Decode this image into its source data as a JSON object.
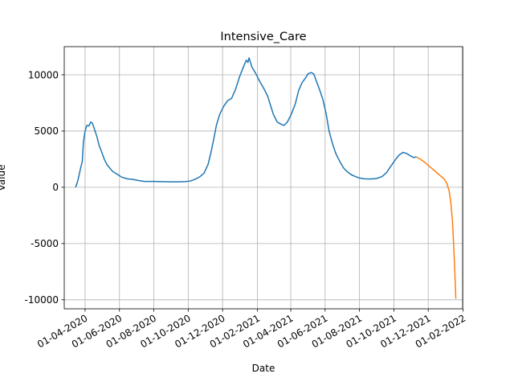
{
  "chart_data": {
    "type": "line",
    "title": "Intensive_Care",
    "xlabel": "Date",
    "ylabel": "Value",
    "grid": true,
    "x_axis": "date",
    "xlim": [
      "2020-02-24",
      "2022-01-31"
    ],
    "ylim": [
      -10800,
      12500
    ],
    "yticks": [
      -10000,
      -5000,
      0,
      5000,
      10000
    ],
    "xticks": [
      {
        "date": "2020-04-01",
        "label": "01-04-2020"
      },
      {
        "date": "2020-06-01",
        "label": "01-06-2020"
      },
      {
        "date": "2020-08-01",
        "label": "01-08-2020"
      },
      {
        "date": "2020-10-01",
        "label": "01-10-2020"
      },
      {
        "date": "2020-12-01",
        "label": "01-12-2020"
      },
      {
        "date": "2021-02-01",
        "label": "01-02-2021"
      },
      {
        "date": "2021-04-01",
        "label": "01-04-2021"
      },
      {
        "date": "2021-06-01",
        "label": "01-06-2021"
      },
      {
        "date": "2021-08-01",
        "label": "01-08-2021"
      },
      {
        "date": "2021-10-01",
        "label": "01-10-2021"
      },
      {
        "date": "2021-12-01",
        "label": "01-12-2021"
      },
      {
        "date": "2022-02-01",
        "label": "01-02-2022"
      }
    ],
    "series": [
      {
        "color": "#1f77b4",
        "points": [
          [
            "2020-03-15",
            0
          ],
          [
            "2020-03-18",
            400
          ],
          [
            "2020-03-21",
            1000
          ],
          [
            "2020-03-24",
            1700
          ],
          [
            "2020-03-27",
            2300
          ],
          [
            "2020-03-29",
            4000
          ],
          [
            "2020-04-01",
            5000
          ],
          [
            "2020-04-04",
            5500
          ],
          [
            "2020-04-08",
            5450
          ],
          [
            "2020-04-11",
            5800
          ],
          [
            "2020-04-14",
            5700
          ],
          [
            "2020-04-18",
            5100
          ],
          [
            "2020-04-22",
            4500
          ],
          [
            "2020-04-26",
            3700
          ],
          [
            "2020-04-30",
            3200
          ],
          [
            "2020-05-05",
            2500
          ],
          [
            "2020-05-10",
            2000
          ],
          [
            "2020-05-15",
            1700
          ],
          [
            "2020-05-20",
            1400
          ],
          [
            "2020-05-28",
            1150
          ],
          [
            "2020-06-05",
            900
          ],
          [
            "2020-06-15",
            750
          ],
          [
            "2020-06-25",
            700
          ],
          [
            "2020-07-05",
            600
          ],
          [
            "2020-07-15",
            520
          ],
          [
            "2020-07-30",
            520
          ],
          [
            "2020-08-15",
            500
          ],
          [
            "2020-09-01",
            480
          ],
          [
            "2020-09-15",
            480
          ],
          [
            "2020-09-25",
            500
          ],
          [
            "2020-10-05",
            560
          ],
          [
            "2020-10-15",
            750
          ],
          [
            "2020-10-22",
            950
          ],
          [
            "2020-10-29",
            1250
          ],
          [
            "2020-11-05",
            2000
          ],
          [
            "2020-11-10",
            3000
          ],
          [
            "2020-11-15",
            4200
          ],
          [
            "2020-11-20",
            5500
          ],
          [
            "2020-11-26",
            6500
          ],
          [
            "2020-12-03",
            7200
          ],
          [
            "2020-12-10",
            7700
          ],
          [
            "2020-12-17",
            7900
          ],
          [
            "2020-12-24",
            8700
          ],
          [
            "2020-12-31",
            9800
          ],
          [
            "2021-01-07",
            10700
          ],
          [
            "2021-01-12",
            11300
          ],
          [
            "2021-01-15",
            11100
          ],
          [
            "2021-01-17",
            11500
          ],
          [
            "2021-01-22",
            10700
          ],
          [
            "2021-01-29",
            10100
          ],
          [
            "2021-02-05",
            9400
          ],
          [
            "2021-02-12",
            8800
          ],
          [
            "2021-02-19",
            8100
          ],
          [
            "2021-02-24",
            7300
          ],
          [
            "2021-03-01",
            6500
          ],
          [
            "2021-03-08",
            5800
          ],
          [
            "2021-03-15",
            5600
          ],
          [
            "2021-03-20",
            5500
          ],
          [
            "2021-03-26",
            5800
          ],
          [
            "2021-04-02",
            6500
          ],
          [
            "2021-04-09",
            7400
          ],
          [
            "2021-04-15",
            8600
          ],
          [
            "2021-04-21",
            9300
          ],
          [
            "2021-04-27",
            9700
          ],
          [
            "2021-05-02",
            10100
          ],
          [
            "2021-05-08",
            10200
          ],
          [
            "2021-05-12",
            10050
          ],
          [
            "2021-05-16",
            9500
          ],
          [
            "2021-05-22",
            8700
          ],
          [
            "2021-05-28",
            7800
          ],
          [
            "2021-06-03",
            6500
          ],
          [
            "2021-06-08",
            5000
          ],
          [
            "2021-06-14",
            3900
          ],
          [
            "2021-06-20",
            3000
          ],
          [
            "2021-06-27",
            2300
          ],
          [
            "2021-07-04",
            1700
          ],
          [
            "2021-07-11",
            1350
          ],
          [
            "2021-07-18",
            1100
          ],
          [
            "2021-07-25",
            950
          ],
          [
            "2021-08-01",
            820
          ],
          [
            "2021-08-10",
            750
          ],
          [
            "2021-08-20",
            730
          ],
          [
            "2021-08-31",
            780
          ],
          [
            "2021-09-10",
            950
          ],
          [
            "2021-09-18",
            1300
          ],
          [
            "2021-09-26",
            1900
          ],
          [
            "2021-10-03",
            2400
          ],
          [
            "2021-10-10",
            2850
          ],
          [
            "2021-10-17",
            3100
          ],
          [
            "2021-10-24",
            3000
          ],
          [
            "2021-10-30",
            2800
          ],
          [
            "2021-11-05",
            2650
          ],
          [
            "2021-11-10",
            2700
          ]
        ]
      },
      {
        "color": "#ff7f0e",
        "points": [
          [
            "2021-11-10",
            2700
          ],
          [
            "2021-11-17",
            2500
          ],
          [
            "2021-11-24",
            2250
          ],
          [
            "2021-12-01",
            1950
          ],
          [
            "2021-12-08",
            1650
          ],
          [
            "2021-12-15",
            1350
          ],
          [
            "2021-12-22",
            1050
          ],
          [
            "2021-12-29",
            750
          ],
          [
            "2022-01-03",
            350
          ],
          [
            "2022-01-07",
            -300
          ],
          [
            "2022-01-10",
            -1300
          ],
          [
            "2022-01-13",
            -3000
          ],
          [
            "2022-01-15",
            -5000
          ],
          [
            "2022-01-17",
            -7300
          ],
          [
            "2022-01-19",
            -9900
          ]
        ]
      }
    ]
  }
}
